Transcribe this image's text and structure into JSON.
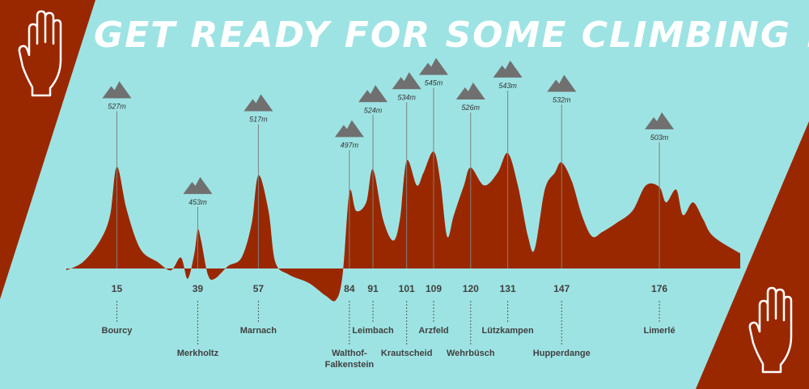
{
  "title": "GET READY FOR SOME CLIMBING !",
  "colors": {
    "background": "#9ee3e3",
    "accent": "#992800",
    "mountain": "#707070",
    "text": "#404040",
    "leader": "#808080"
  },
  "icons": {
    "top_left": "raised-hand-icon",
    "bottom_right": "raised-hand-icon",
    "peaks": "mountain-icon"
  },
  "chart_data": {
    "type": "area",
    "xlabel": "",
    "ylabel": "",
    "xlim": [
      0,
      200
    ],
    "profile": [
      [
        0,
        405
      ],
      [
        5,
        415
      ],
      [
        10,
        440
      ],
      [
        13,
        470
      ],
      [
        15,
        527
      ],
      [
        18,
        475
      ],
      [
        22,
        430
      ],
      [
        27,
        415
      ],
      [
        31,
        405
      ],
      [
        34,
        420
      ],
      [
        36,
        395
      ],
      [
        38,
        425
      ],
      [
        39,
        453
      ],
      [
        40,
        440
      ],
      [
        42,
        400
      ],
      [
        44,
        395
      ],
      [
        48,
        410
      ],
      [
        52,
        420
      ],
      [
        55,
        460
      ],
      [
        57,
        517
      ],
      [
        60,
        475
      ],
      [
        62,
        415
      ],
      [
        66,
        400
      ],
      [
        72,
        390
      ],
      [
        77,
        375
      ],
      [
        80,
        370
      ],
      [
        82,
        400
      ],
      [
        84,
        497
      ],
      [
        86,
        475
      ],
      [
        89,
        485
      ],
      [
        91,
        524
      ],
      [
        94,
        465
      ],
      [
        97,
        440
      ],
      [
        99,
        465
      ],
      [
        101,
        534
      ],
      [
        104,
        505
      ],
      [
        106,
        520
      ],
      [
        109,
        545
      ],
      [
        111,
        510
      ],
      [
        113,
        445
      ],
      [
        115,
        470
      ],
      [
        118,
        505
      ],
      [
        120,
        526
      ],
      [
        124,
        505
      ],
      [
        128,
        520
      ],
      [
        131,
        543
      ],
      [
        134,
        505
      ],
      [
        137,
        445
      ],
      [
        139,
        430
      ],
      [
        142,
        500
      ],
      [
        145,
        520
      ],
      [
        147,
        532
      ],
      [
        150,
        510
      ],
      [
        153,
        470
      ],
      [
        156,
        445
      ],
      [
        159,
        450
      ],
      [
        163,
        460
      ],
      [
        168,
        475
      ],
      [
        172,
        505
      ],
      [
        176,
        503
      ],
      [
        178,
        485
      ],
      [
        181,
        500
      ],
      [
        183,
        470
      ],
      [
        186,
        485
      ],
      [
        189,
        465
      ],
      [
        192,
        445
      ],
      [
        200,
        425
      ]
    ],
    "checkpoints": [
      {
        "km": 15,
        "name": "Bourcy",
        "elevation": "527m"
      },
      {
        "km": 39,
        "name": "Merkholtz",
        "elevation": "453m"
      },
      {
        "km": 57,
        "name": "Marnach",
        "elevation": "517m"
      },
      {
        "km": 84,
        "name": "Walthof-Falkenstein",
        "name_lines": [
          "Walthof-",
          "Falkenstein"
        ],
        "elevation": "497m"
      },
      {
        "km": 91,
        "name": "Leimbach",
        "elevation": "524m"
      },
      {
        "km": 101,
        "name": "Krautscheid",
        "elevation": "534m"
      },
      {
        "km": 109,
        "name": "Arzfeld",
        "elevation": "545m"
      },
      {
        "km": 120,
        "name": "Wehrbüsch",
        "elevation": "526m"
      },
      {
        "km": 131,
        "name": "Lützkampen",
        "elevation": "543m"
      },
      {
        "km": 147,
        "name": "Hupperdange",
        "elevation": "532m"
      },
      {
        "km": 176,
        "name": "Limerlé",
        "elevation": "503m"
      }
    ]
  }
}
